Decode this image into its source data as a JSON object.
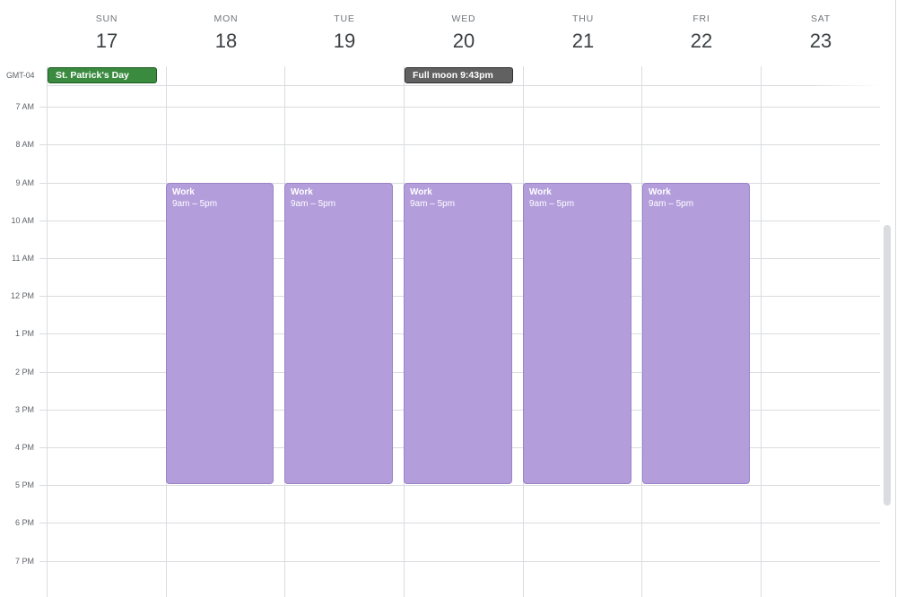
{
  "days": [
    {
      "name": "SUN",
      "date": "17"
    },
    {
      "name": "MON",
      "date": "18"
    },
    {
      "name": "TUE",
      "date": "19"
    },
    {
      "name": "WED",
      "date": "20"
    },
    {
      "name": "THU",
      "date": "21"
    },
    {
      "name": "FRI",
      "date": "22"
    },
    {
      "name": "SAT",
      "date": "23"
    }
  ],
  "timezone": "GMT-04",
  "all_day_events": [
    {
      "title": "St. Patrick's Day",
      "color": "#3a8a3f"
    },
    {
      "title": "Full moon 9:43pm",
      "color": "#616161"
    }
  ],
  "hours": [
    "7 AM",
    "8 AM",
    "9 AM",
    "10 AM",
    "11 AM",
    "12 PM",
    "1 PM",
    "2 PM",
    "3 PM",
    "4 PM",
    "5 PM",
    "6 PM",
    "7 PM"
  ],
  "events": [
    {
      "title": "Work",
      "time": "9am – 5pm",
      "color": "#b39ddb"
    },
    {
      "title": "Work",
      "time": "9am – 5pm",
      "color": "#b39ddb"
    },
    {
      "title": "Work",
      "time": "9am – 5pm",
      "color": "#b39ddb"
    },
    {
      "title": "Work",
      "time": "9am – 5pm",
      "color": "#b39ddb"
    },
    {
      "title": "Work",
      "time": "9am – 5pm",
      "color": "#b39ddb"
    }
  ]
}
